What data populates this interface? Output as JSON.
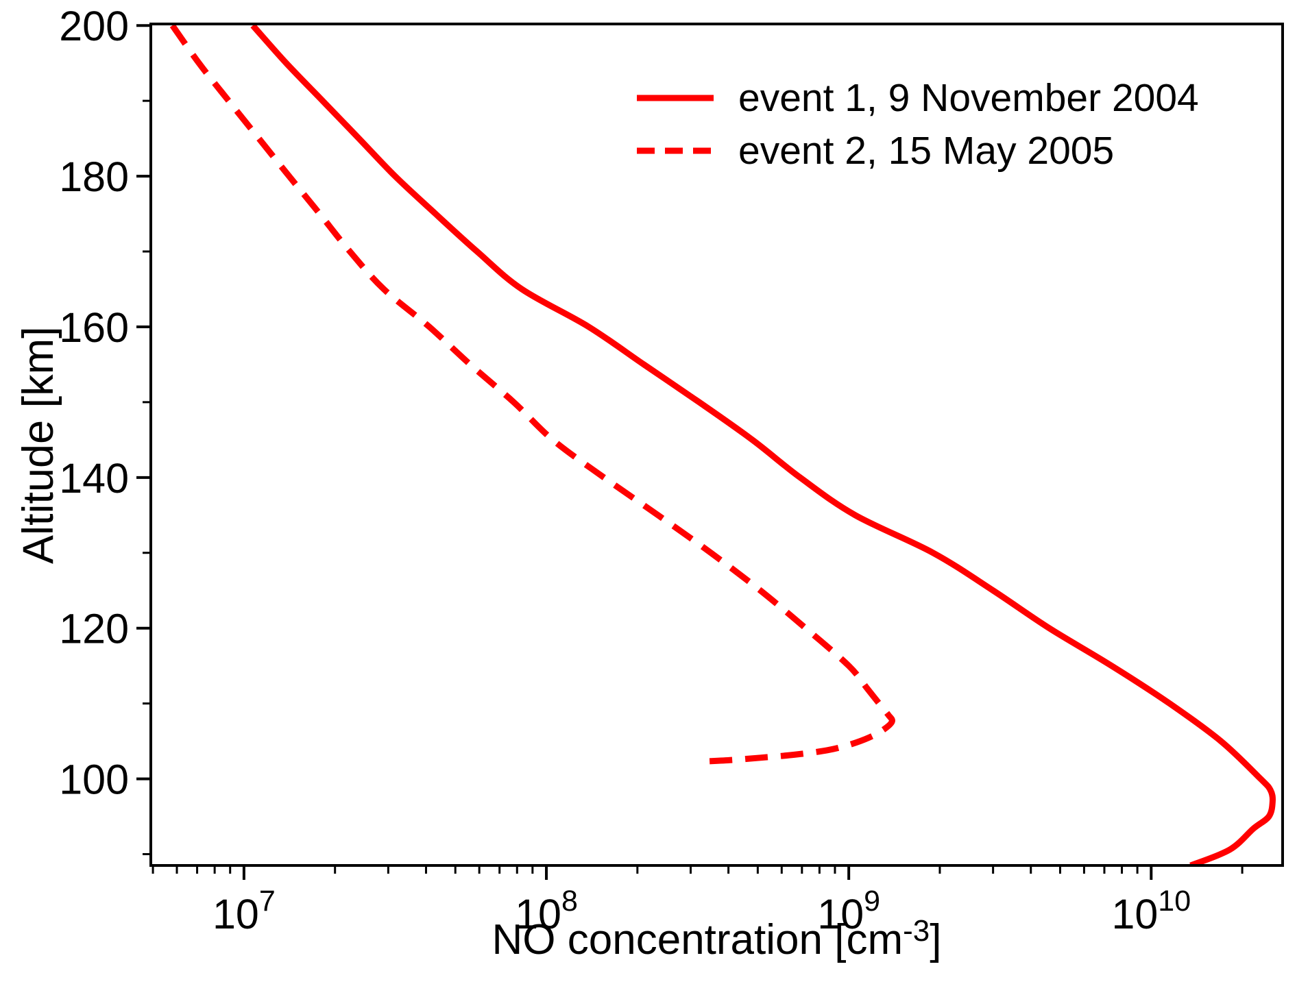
{
  "figure": {
    "background": "#ffffff",
    "text_color": "#000000",
    "accent_color": "#ff0000"
  },
  "chart_data": {
    "type": "line",
    "title": "",
    "xlabel": "NO concentration [cm-3]",
    "xlabel_parts": {
      "main": "NO concentration [cm",
      "sup": "-3",
      "end": "]"
    },
    "ylabel": "Altitude [km]",
    "x_scale": "log",
    "y_scale": "linear",
    "xlim": [
      4920000,
      27200000000
    ],
    "ylim": [
      88.5,
      200.2
    ],
    "grid": false,
    "x_major_ticks": [
      {
        "value": 10000000.0,
        "base": "10",
        "exp": "7"
      },
      {
        "value": 100000000.0,
        "base": "10",
        "exp": "8"
      },
      {
        "value": 1000000000.0,
        "base": "10",
        "exp": "9"
      },
      {
        "value": 10000000000.0,
        "base": "10",
        "exp": "10"
      }
    ],
    "x_minor_mantissas": [
      2,
      3,
      4,
      5,
      6,
      7,
      8,
      9
    ],
    "x_minor_decades": [
      1000000.0,
      10000000.0,
      100000000.0,
      1000000000.0,
      10000000000.0
    ],
    "y_major_ticks": [
      {
        "value": 100,
        "label": "100"
      },
      {
        "value": 120,
        "label": "120"
      },
      {
        "value": 140,
        "label": "140"
      },
      {
        "value": 160,
        "label": "160"
      },
      {
        "value": 180,
        "label": "180"
      },
      {
        "value": 200,
        "label": "200"
      }
    ],
    "y_minor_ticks": [
      90,
      110,
      130,
      150,
      170,
      190
    ],
    "legend": {
      "position": "upper right",
      "frame": false,
      "entries": [
        {
          "label": "event 1, 9 November 2004",
          "style": "solid"
        },
        {
          "label": "event 2, 15 May 2005",
          "style": "dashed"
        }
      ]
    },
    "series": [
      {
        "name": "event 1, 9 November 2004",
        "line": "solid",
        "color": "#ff0000",
        "points_format": [
          "NO concentration cm-3 (x)",
          "altitude km (y)"
        ],
        "points": [
          [
            10700000.0,
            200
          ],
          [
            13800000.0,
            195
          ],
          [
            18200000.0,
            190
          ],
          [
            24000000.0,
            185
          ],
          [
            31600000.0,
            180
          ],
          [
            43000000.0,
            175
          ],
          [
            59000000.0,
            170
          ],
          [
            83000000.0,
            165
          ],
          [
            138000000.0,
            160
          ],
          [
            210000000.0,
            155
          ],
          [
            320000000.0,
            150
          ],
          [
            480000000.0,
            145
          ],
          [
            690000000.0,
            140
          ],
          [
            1050000000.0,
            135
          ],
          [
            1900000000.0,
            130
          ],
          [
            3000000000.0,
            125
          ],
          [
            4600000000.0,
            120
          ],
          [
            7400000000.0,
            115
          ],
          [
            11500000000.0,
            110
          ],
          [
            17000000000.0,
            105
          ],
          [
            23000000000.0,
            100
          ],
          [
            24800000000.0,
            98.5
          ],
          [
            25200000000.0,
            97
          ],
          [
            24500000000.0,
            95
          ],
          [
            21800000000.0,
            93.4
          ],
          [
            18200000000.0,
            90.6
          ],
          [
            13500000000.0,
            88.5
          ]
        ]
      },
      {
        "name": "event 2, 15 May 2005",
        "line": "dashed",
        "color": "#ff0000",
        "points_format": [
          "NO concentration cm-3 (x)",
          "altitude km (y)"
        ],
        "points": [
          [
            5800000.0,
            200
          ],
          [
            7100000.0,
            195
          ],
          [
            8900000.0,
            190
          ],
          [
            11200000.0,
            185
          ],
          [
            14100000.0,
            180
          ],
          [
            17800000.0,
            175
          ],
          [
            22400000.0,
            170
          ],
          [
            29000000.0,
            165
          ],
          [
            41000000.0,
            160
          ],
          [
            56000000.0,
            155
          ],
          [
            78000000.0,
            150
          ],
          [
            105000000.0,
            145
          ],
          [
            155000000.0,
            140
          ],
          [
            234000000.0,
            135
          ],
          [
            350000000.0,
            130
          ],
          [
            510000000.0,
            125
          ],
          [
            720000000.0,
            120
          ],
          [
            1000000000.0,
            115
          ],
          [
            1150000000.0,
            112
          ],
          [
            1260000000.0,
            110
          ],
          [
            1350000000.0,
            108.5
          ],
          [
            1390000000.0,
            107.6
          ],
          [
            1300000000.0,
            106.5
          ],
          [
            1170000000.0,
            105.5
          ],
          [
            1000000000.0,
            104.5
          ],
          [
            850000000.0,
            103.8
          ],
          [
            660000000.0,
            103.2
          ],
          [
            510000000.0,
            102.8
          ],
          [
            410000000.0,
            102.5
          ],
          [
            330000000.0,
            102.3
          ]
        ]
      }
    ]
  }
}
